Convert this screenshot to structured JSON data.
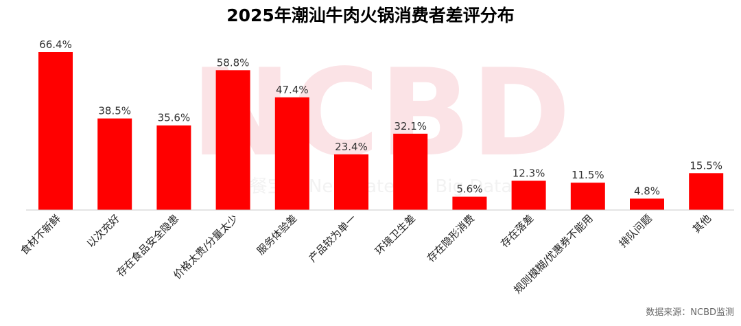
{
  "chart_data": {
    "type": "bar",
    "title": "2025年潮汕牛肉火锅消费者差评分布",
    "categories": [
      "食材不新鲜",
      "以次充好",
      "存在食品安全隐患",
      "价格太贵/分量太少",
      "服务体验差",
      "产品较为单一",
      "环境卫生差",
      "存在隐形消费",
      "存在落差",
      "规则模糊/优惠券不能用",
      "排队问题",
      "其他"
    ],
    "values": [
      66.4,
      38.5,
      35.6,
      58.8,
      47.4,
      23.4,
      32.1,
      5.6,
      12.3,
      11.5,
      4.8,
      15.5
    ],
    "value_labels": [
      "66.4%",
      "38.5%",
      "35.6%",
      "58.8%",
      "47.4%",
      "23.4%",
      "32.1%",
      "5.6%",
      "12.3%",
      "11.5%",
      "4.8%",
      "15.5%"
    ],
    "unit": "%",
    "ylim": [
      0,
      66.4
    ],
    "grid": false,
    "bar_color": "#ff0000",
    "axis_color": "#c8c8c8"
  },
  "watermark": {
    "logo_text": "NCBD",
    "tagline": "餐宝典 New Catering Big Data"
  },
  "source": "数据来源：NCBD监测"
}
